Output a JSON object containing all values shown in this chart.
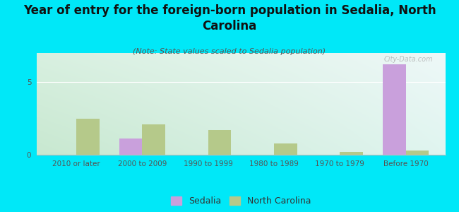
{
  "title": "Year of entry for the foreign-born population in Sedalia, North\nCarolina",
  "subtitle": "(Note: State values scaled to Sedalia population)",
  "categories": [
    "2010 or later",
    "2000 to 2009",
    "1990 to 1999",
    "1980 to 1989",
    "1970 to 1979",
    "Before 1970"
  ],
  "sedalia_values": [
    0,
    1.1,
    0,
    0,
    0,
    6.2
  ],
  "nc_values": [
    2.5,
    2.1,
    1.7,
    0.8,
    0.2,
    0.3
  ],
  "sedalia_color": "#c9a0dc",
  "nc_color": "#b5c98a",
  "background_outer": "#00e8f8",
  "background_chart_tl": "#d8f0e0",
  "background_chart_tr": "#eef8f8",
  "background_chart_bl": "#c8e8d0",
  "background_chart_br": "#e0f5f0",
  "ylim": [
    0,
    7
  ],
  "yticks": [
    0,
    5
  ],
  "bar_width": 0.35,
  "title_fontsize": 12,
  "subtitle_fontsize": 8,
  "tick_fontsize": 7.5,
  "legend_fontsize": 9,
  "watermark": "City-Data.com"
}
